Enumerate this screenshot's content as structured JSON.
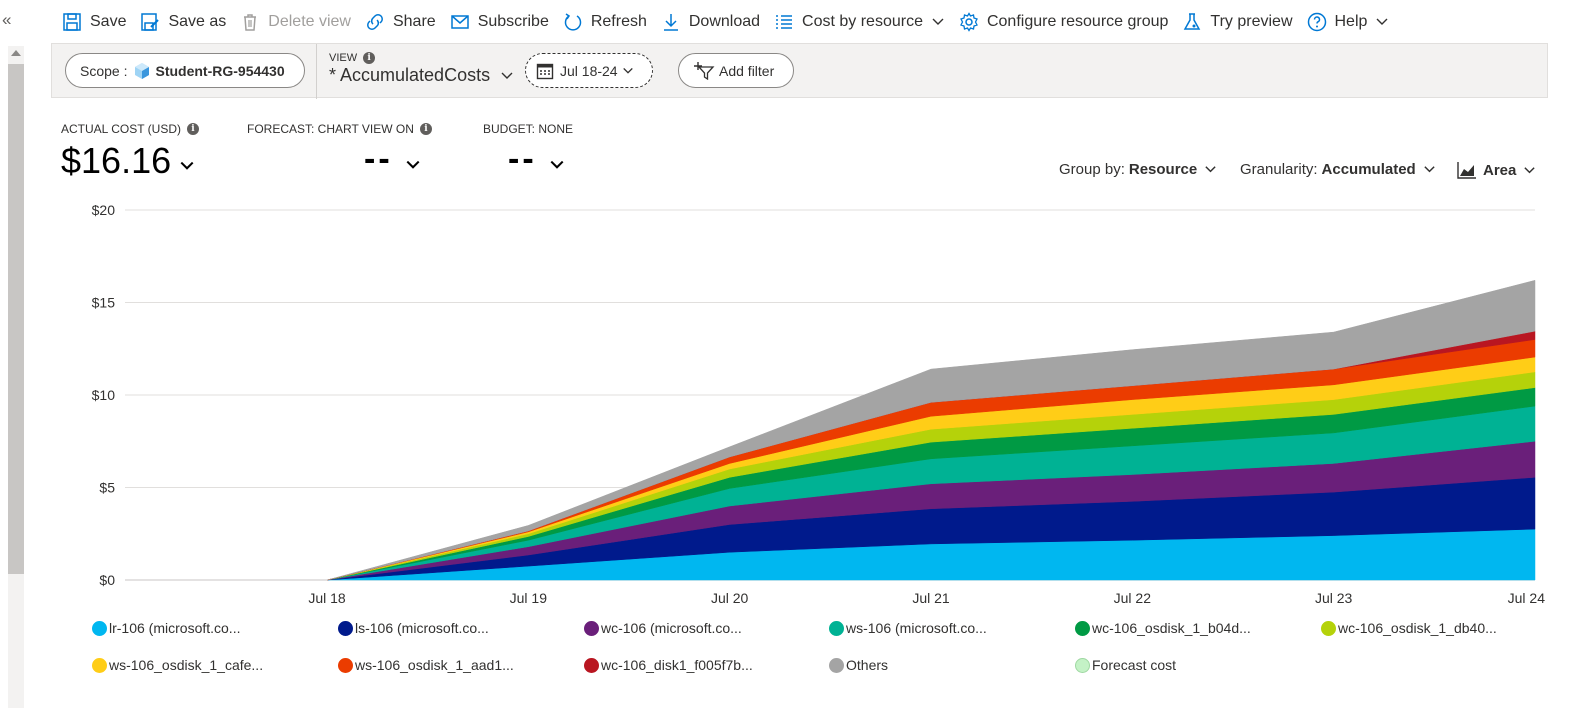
{
  "toolbar": {
    "save": "Save",
    "save_as": "Save as",
    "delete_view": "Delete view",
    "share": "Share",
    "subscribe": "Subscribe",
    "refresh": "Refresh",
    "download": "Download",
    "cost_by_resource": "Cost by resource",
    "configure": "Configure resource group",
    "try_preview": "Try preview",
    "help": "Help"
  },
  "filters": {
    "scope_label": "Scope :",
    "scope_value": "Student-RG-954430",
    "view_label": "VIEW",
    "view_value": "* AccumulatedCosts",
    "date_range": "Jul 18-24",
    "add_filter": "Add filter"
  },
  "kpis": {
    "actual_label": "ACTUAL COST (USD)",
    "actual_value": "$16.16",
    "forecast_label": "FORECAST: CHART VIEW ON",
    "forecast_value": "--",
    "budget_label": "BUDGET: NONE",
    "budget_value": "--"
  },
  "controls": {
    "group_by_label": "Group by:",
    "group_by_value": "Resource",
    "granularity_label": "Granularity:",
    "granularity_value": "Accumulated",
    "chart_type": "Area"
  },
  "chart_data": {
    "type": "area",
    "stacked": true,
    "x": [
      "Jul 18",
      "Jul 19",
      "Jul 20",
      "Jul 21",
      "Jul 22",
      "Jul 23",
      "Jul 24"
    ],
    "y_ticks": [
      "$0",
      "$5",
      "$10",
      "$15",
      "$20"
    ],
    "ylim": [
      0,
      20
    ],
    "grid": true,
    "series": [
      {
        "name": "lr-106 (microsoft.co...",
        "color": "#00b7f0",
        "values": [
          0,
          0.75,
          1.5,
          1.95,
          2.15,
          2.4,
          2.75
        ]
      },
      {
        "name": "ls-106 (microsoft.co...",
        "color": "#001a8c",
        "values": [
          0,
          0.6,
          1.5,
          1.9,
          2.1,
          2.35,
          2.8
        ]
      },
      {
        "name": "wc-106 (microsoft.co...",
        "color": "#6a1f7a",
        "values": [
          0,
          0.45,
          1.0,
          1.35,
          1.45,
          1.55,
          1.95
        ]
      },
      {
        "name": "ws-106 (microsoft.co...",
        "color": "#00b294",
        "values": [
          0,
          0.35,
          0.95,
          1.35,
          1.55,
          1.65,
          1.9
        ]
      },
      {
        "name": "wc-106_osdisk_1_b04d...",
        "color": "#009a44",
        "values": [
          0,
          0.2,
          0.6,
          0.9,
          0.95,
          1.0,
          1.0
        ]
      },
      {
        "name": "wc-106_osdisk_1_db40...",
        "color": "#b5d20a",
        "values": [
          0,
          0.15,
          0.45,
          0.7,
          0.75,
          0.8,
          0.85
        ]
      },
      {
        "name": "ws-106_osdisk_1_cafe...",
        "color": "#ffcd17",
        "values": [
          0,
          0.1,
          0.3,
          0.7,
          0.8,
          0.8,
          0.8
        ]
      },
      {
        "name": "ws-106_osdisk_1_aad1...",
        "color": "#eb3c00",
        "values": [
          0,
          0.05,
          0.35,
          0.75,
          0.75,
          0.85,
          0.95
        ]
      },
      {
        "name": "wc-106_disk1_f005f7b...",
        "color": "#b91621",
        "values": [
          0,
          0,
          0,
          0,
          0,
          0,
          0.45
        ]
      },
      {
        "name": "Others",
        "color": "#a4a4a4",
        "values": [
          0,
          0.3,
          0.55,
          1.8,
          1.95,
          2.0,
          2.75
        ]
      }
    ],
    "legend_extra": {
      "name": "Forecast cost",
      "color": "#c4f2c6"
    },
    "legend_position": "bottom"
  }
}
